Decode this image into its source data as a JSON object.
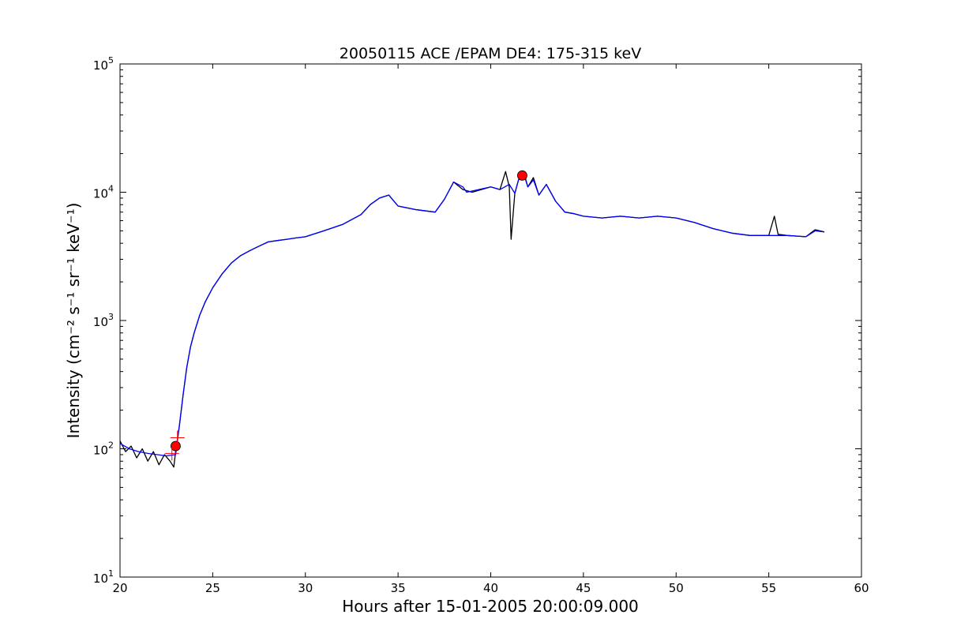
{
  "chart_data": {
    "type": "line",
    "title": "20050115 ACE /EPAM DE4: 175-315 keV",
    "xlabel": "Hours after 15-01-2005 20:00:09.000",
    "ylabel": "Intensity (cm⁻² s⁻¹ sr⁻¹ keV⁻¹)",
    "xlim": [
      20,
      60
    ],
    "ylim": [
      10,
      100000
    ],
    "yscale": "log",
    "grid": false,
    "x_ticks": [
      20,
      25,
      30,
      35,
      40,
      45,
      50,
      55,
      60
    ],
    "y_ticks": [
      {
        "value": 10,
        "base": "10",
        "exp": "1"
      },
      {
        "value": 100,
        "base": "10",
        "exp": "2"
      },
      {
        "value": 1000,
        "base": "10",
        "exp": "3"
      },
      {
        "value": 10000,
        "base": "10",
        "exp": "4"
      },
      {
        "value": 100000,
        "base": "10",
        "exp": "5"
      }
    ],
    "series": [
      {
        "color": "#000000",
        "x": [
          20.0,
          20.3,
          20.6,
          20.9,
          21.2,
          21.5,
          21.8,
          22.1,
          22.4,
          22.7,
          22.9,
          23.0,
          23.2,
          23.4,
          23.6,
          23.8,
          24.0,
          24.3,
          24.6,
          25.0,
          25.5,
          26.0,
          26.5,
          27.0,
          27.5,
          28.0,
          28.5,
          29.0,
          29.5,
          30.0,
          31.0,
          32.0,
          33.0,
          33.5,
          34.0,
          34.5,
          35.0,
          36.0,
          37.0,
          37.5,
          38.0,
          38.5,
          39.0,
          40.0,
          40.5,
          40.8,
          41.0,
          41.1,
          41.3,
          41.5,
          41.8,
          42.0,
          42.3,
          42.6,
          43.0,
          43.5,
          44.0,
          44.5,
          45.0,
          46.0,
          47.0,
          48.0,
          49.0,
          50.0,
          51.0,
          52.0,
          53.0,
          54.0,
          55.0,
          55.3,
          55.5,
          56.0,
          57.0,
          57.5,
          58.0
        ],
        "y": [
          115,
          95,
          105,
          85,
          100,
          80,
          95,
          75,
          90,
          80,
          72,
          95,
          150,
          260,
          430,
          620,
          800,
          1100,
          1400,
          1800,
          2300,
          2800,
          3200,
          3500,
          3800,
          4100,
          4200,
          4300,
          4400,
          4500,
          5000,
          5600,
          6700,
          8000,
          9000,
          9500,
          7800,
          7300,
          7000,
          8800,
          12000,
          10500,
          10000,
          11000,
          10500,
          14500,
          11000,
          4300,
          9800,
          12500,
          14000,
          11000,
          13000,
          9500,
          11500,
          8500,
          7000,
          6800,
          6500,
          6300,
          6500,
          6300,
          6500,
          6300,
          5800,
          5200,
          4800,
          4600,
          4600,
          6500,
          4700,
          4600,
          4500,
          5100,
          4900
        ]
      },
      {
        "color": "#0000ff",
        "x": [
          20.0,
          20.5,
          21.0,
          21.5,
          22.0,
          22.5,
          23.0,
          23.2,
          23.4,
          23.6,
          23.8,
          24.0,
          24.3,
          24.6,
          25.0,
          25.5,
          26.0,
          26.5,
          27.0,
          27.5,
          28.0,
          28.5,
          29.0,
          29.5,
          30.0,
          31.0,
          32.0,
          33.0,
          33.5,
          34.0,
          34.5,
          35.0,
          36.0,
          37.0,
          37.5,
          38.0,
          38.5,
          38.7,
          40.0,
          40.5,
          41.0,
          41.3,
          41.5,
          41.8,
          42.0,
          42.3,
          42.6,
          43.0,
          43.5,
          44.0,
          44.5,
          45.0,
          46.0,
          47.0,
          48.0,
          49.0,
          50.0,
          51.0,
          52.0,
          53.0,
          54.0,
          55.0,
          56.0,
          57.0,
          57.5,
          58.0
        ],
        "y": [
          110,
          100,
          95,
          92,
          90,
          88,
          90,
          150,
          260,
          430,
          620,
          800,
          1100,
          1400,
          1800,
          2300,
          2800,
          3200,
          3500,
          3800,
          4100,
          4200,
          4300,
          4400,
          4500,
          5000,
          5600,
          6700,
          8000,
          9000,
          9500,
          7800,
          7300,
          7000,
          8800,
          12000,
          11000,
          10000,
          11000,
          10500,
          11500,
          9800,
          12500,
          13500,
          11000,
          12500,
          9500,
          11500,
          8500,
          7000,
          6800,
          6500,
          6300,
          6500,
          6300,
          6500,
          6300,
          5800,
          5200,
          4800,
          4600,
          4600,
          4600,
          4500,
          5000,
          4900
        ]
      }
    ],
    "markers": [
      {
        "shape": "circle",
        "color": "#ff0000",
        "x": 23.0,
        "y": 105
      },
      {
        "shape": "circle",
        "color": "#ff0000",
        "x": 41.7,
        "y": 13500
      },
      {
        "shape": "plus",
        "color": "#ff0000",
        "x": 23.1,
        "y": 122
      },
      {
        "shape": "plus",
        "color": "#ff0000",
        "x": 22.8,
        "y": 92
      }
    ]
  }
}
